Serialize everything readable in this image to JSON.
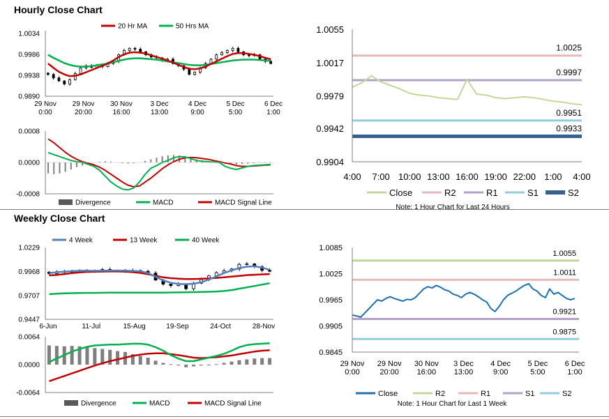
{
  "page": {
    "hourly_title": "Hourly Close Chart",
    "weekly_title": "Weekly Close Chart"
  },
  "chart_data": [
    {
      "id": "hourly_price",
      "type": "candlestick",
      "legend": [
        "20 Hr MA",
        "50 Hrs MA"
      ],
      "yticks": [
        "1.0034",
        "0.9986",
        "0.9938",
        "0.9890"
      ],
      "ylim": [
        0.989,
        1.0034
      ],
      "xticks": [
        [
          "29 Nov",
          "0:00"
        ],
        [
          "29 Nov",
          "20:00"
        ],
        [
          "30 Nov",
          "16:00"
        ],
        [
          "3 Dec",
          "13:00"
        ],
        [
          "4 Dec",
          "9:00"
        ],
        [
          "5 Dec",
          "5:00"
        ],
        [
          "6 Dec",
          "1:00"
        ]
      ],
      "close": [
        0.994,
        0.9932,
        0.9925,
        0.9918,
        0.9928,
        0.9942,
        0.9955,
        0.996,
        0.9956,
        0.9962,
        0.9958,
        0.9965,
        0.997,
        0.9985,
        0.9995,
        1.0,
        0.9998,
        0.9992,
        0.9985,
        0.998,
        0.9978,
        0.9972,
        0.9975,
        0.9965,
        0.996,
        0.9952,
        0.994,
        0.9945,
        0.9955,
        0.9965,
        0.9975,
        0.9985,
        0.999,
        0.9995,
        1.0,
        0.9992,
        0.9985,
        0.9983,
        0.9985,
        0.9975,
        0.997,
        0.9965
      ],
      "ma20": [
        0.9965,
        0.9955,
        0.9946,
        0.994,
        0.9936,
        0.9937,
        0.994,
        0.9945,
        0.995,
        0.9955,
        0.996,
        0.9965,
        0.9972,
        0.998,
        0.9986,
        0.999,
        0.9991,
        0.999,
        0.9988,
        0.9984,
        0.998,
        0.9976,
        0.9972,
        0.9967,
        0.9962,
        0.9957,
        0.9953,
        0.9952,
        0.9954,
        0.9958,
        0.9964,
        0.997,
        0.9976,
        0.9982,
        0.9987,
        0.9989,
        0.9989,
        0.9987,
        0.9985,
        0.9982,
        0.9978,
        0.9975
      ],
      "ma50": [
        0.9985,
        0.9978,
        0.9972,
        0.9966,
        0.9962,
        0.9959,
        0.9958,
        0.9958,
        0.9959,
        0.9961,
        0.9963,
        0.9965,
        0.9968,
        0.9971,
        0.9974,
        0.9976,
        0.9977,
        0.9977,
        0.9976,
        0.9975,
        0.9974,
        0.9972,
        0.997,
        0.9968,
        0.9966,
        0.9964,
        0.9962,
        0.9961,
        0.9961,
        0.9962,
        0.9964,
        0.9966,
        0.9968,
        0.997,
        0.9972,
        0.9973,
        0.9974,
        0.9974,
        0.9974,
        0.9973,
        0.9972,
        0.9971
      ]
    },
    {
      "id": "hourly_macd",
      "type": "bar+line",
      "legend": [
        "Divergence",
        "MACD",
        "MACD Signal Line"
      ],
      "yticks": [
        "0.0008",
        "0.0000",
        "-0.0008"
      ],
      "ylim": [
        -0.0008,
        0.0008
      ],
      "divergence": [
        -0.00028,
        -0.0003,
        -0.00028,
        -0.00024,
        -0.00018,
        -0.00012,
        -8e-05,
        -4e-05,
        0,
        2e-05,
        3e-05,
        2e-05,
        0,
        -2e-05,
        -3e-05,
        -2e-05,
        0,
        4e-05,
        8e-05,
        0.00012,
        0.00016,
        0.00018,
        0.00019,
        0.00018,
        0.00016,
        0.00012,
        8e-05,
        5e-05,
        2e-05,
        0,
        -2e-05,
        -4e-05,
        -6e-05,
        -5e-05,
        -4e-05,
        -3e-05,
        -2e-05,
        1e-05,
        1e-05,
        1e-05
      ],
      "macd": [
        0.00025,
        0.0002,
        0.00015,
        0.0001,
        5e-05,
        2e-05,
        0,
        -5e-05,
        -0.0001,
        -0.0002,
        -0.00035,
        -0.0005,
        -0.0006,
        -0.00068,
        -0.0007,
        -0.00065,
        -0.0005,
        -0.0003,
        -0.00015,
        -8e-05,
        0,
        5e-05,
        0.00012,
        0.00015,
        0.00014,
        0.0001,
        5e-05,
        3e-05,
        2e-05,
        1e-05,
        0,
        -0.0001,
        -0.00015,
        -0.00018,
        -0.00014,
        -0.0001,
        -8e-05,
        -7e-05,
        -6e-05,
        -5e-05
      ],
      "signal": [
        0.0006,
        0.0005,
        0.00038,
        0.00026,
        0.00016,
        8e-05,
        2e-05,
        -2e-05,
        -6e-05,
        -0.00012,
        -0.0002,
        -0.0003,
        -0.0004,
        -0.0005,
        -0.00058,
        -0.00062,
        -0.0006,
        -0.0005,
        -0.0004,
        -0.00028,
        -0.00016,
        -6e-05,
        2e-05,
        8e-05,
        0.00012,
        0.00013,
        0.00012,
        0.0001,
        8e-05,
        5e-05,
        2e-05,
        -1e-05,
        -4e-05,
        -8e-05,
        -0.0001,
        -0.0001,
        -9e-05,
        -8e-05,
        -7e-05,
        -6e-05
      ]
    },
    {
      "id": "hourly_levels",
      "type": "line",
      "ylim": [
        0.9904,
        1.0055
      ],
      "yticks": [
        "1.0055",
        "1.0017",
        "0.9979",
        "0.9942",
        "0.9904"
      ],
      "xticks": [
        "4:00",
        "7:00",
        "10:00",
        "13:00",
        "16:00",
        "19:00",
        "22:00",
        "1:00",
        "4:00"
      ],
      "close": [
        0.9989,
        0.9994,
        1.0002,
        0.9995,
        0.9991,
        0.9987,
        0.9982,
        0.998,
        0.9979,
        0.9977,
        0.9976,
        0.9975,
        0.9998,
        0.9981,
        0.998,
        0.9977,
        0.9976,
        0.9977,
        0.9978,
        0.9977,
        0.9975,
        0.9973,
        0.9972,
        0.997,
        0.9969
      ],
      "levels": {
        "R2": 1.0025,
        "R1": 0.9997,
        "S1": 0.9951,
        "S2": 0.9933
      },
      "level_labels": [
        "1.0025",
        "0.9997",
        "0.9951",
        "0.9933"
      ],
      "legend": [
        "Close",
        "R2",
        "R1",
        "S1",
        "S2"
      ],
      "note": "Note: 1 Hour Chart for Last 24 Hours"
    },
    {
      "id": "weekly_price",
      "type": "candlestick",
      "legend": [
        "4 Week",
        "13 Week",
        "40 Week"
      ],
      "yticks": [
        "1.0229",
        "0.9968",
        "0.9707",
        "0.9447"
      ],
      "ylim": [
        0.9447,
        1.0229
      ],
      "xticks": [
        "6-Jun",
        "11-Jul",
        "15-Aug",
        "19-Sep",
        "24-Oct",
        "28-Nov"
      ],
      "close": [
        0.9945,
        0.9965,
        0.996,
        0.9975,
        0.9972,
        0.997,
        0.9978,
        0.999,
        0.9975,
        0.9978,
        0.9975,
        0.9978,
        0.997,
        0.995,
        0.9875,
        0.983,
        0.9815,
        0.983,
        0.978,
        0.984,
        0.988,
        0.992,
        0.9955,
        0.9975,
        0.9995,
        1.0045,
        1.005,
        1.002,
        0.998,
        0.997
      ],
      "w4": [
        0.995,
        0.996,
        0.9965,
        0.9972,
        0.9975,
        0.9976,
        0.9975,
        0.9976,
        0.9978,
        0.9978,
        0.9976,
        0.9974,
        0.997,
        0.995,
        0.991,
        0.987,
        0.9845,
        0.9833,
        0.983,
        0.9835,
        0.985,
        0.988,
        0.9915,
        0.995,
        0.998,
        1.0005,
        1.002,
        1.0025,
        1.001,
        0.9985
      ],
      "w13": [
        0.9925,
        0.993,
        0.994,
        0.995,
        0.9958,
        0.9963,
        0.9965,
        0.9967,
        0.9968,
        0.9968,
        0.9966,
        0.996,
        0.9952,
        0.9938,
        0.992,
        0.9905,
        0.9895,
        0.989,
        0.9885,
        0.9885,
        0.9888,
        0.9892,
        0.9898,
        0.9905,
        0.9912,
        0.992,
        0.9928,
        0.9932,
        0.9936,
        0.994
      ],
      "w40": [
        0.972,
        0.9726,
        0.973,
        0.9732,
        0.9734,
        0.9735,
        0.9735,
        0.9736,
        0.9737,
        0.9738,
        0.9738,
        0.9738,
        0.9738,
        0.9738,
        0.9738,
        0.9738,
        0.9739,
        0.974,
        0.9741,
        0.9743,
        0.9745,
        0.9747,
        0.975,
        0.9755,
        0.9765,
        0.978,
        0.9795,
        0.981,
        0.9825,
        0.984
      ]
    },
    {
      "id": "weekly_macd",
      "type": "bar+line",
      "legend": [
        "Divergence",
        "MACD",
        "MACD Signal Line"
      ],
      "yticks": [
        "0.0064",
        "0.0000",
        "-0.0064"
      ],
      "ylim": [
        -0.0064,
        0.0064
      ],
      "divergence": [
        0.0044,
        0.0043,
        0.0042,
        0.0043,
        0.0042,
        0.004,
        0.0038,
        0.0036,
        0.0034,
        0.0031,
        0.0029,
        0.0024,
        0.002,
        0.0016,
        0.0009,
        0.0004,
        0.0001,
        -0.0002,
        -0.0006,
        -0.0004,
        -0.0002,
        -0.0001,
        0.0001,
        0.0004,
        0.0007,
        0.001,
        0.0012,
        0.0014,
        0.0015,
        0.0015
      ],
      "macd": [
        0.0006,
        0.0014,
        0.0022,
        0.003,
        0.0036,
        0.0041,
        0.0044,
        0.0045,
        0.0046,
        0.0046,
        0.0047,
        0.0048,
        0.0048,
        0.0046,
        0.004,
        0.0032,
        0.0022,
        0.0014,
        0.0008,
        0.0008,
        0.0012,
        0.0016,
        0.002,
        0.0025,
        0.0032,
        0.004,
        0.0045,
        0.0047,
        0.0048,
        0.0049
      ],
      "signal": [
        -0.0038,
        -0.0032,
        -0.0026,
        -0.002,
        -0.0014,
        -0.0008,
        -0.0002,
        0.0003,
        0.0008,
        0.0012,
        0.0016,
        0.002,
        0.0023,
        0.0025,
        0.0026,
        0.0026,
        0.0024,
        0.0022,
        0.0019,
        0.0016,
        0.0015,
        0.0016,
        0.0017,
        0.0019,
        0.0021,
        0.0024,
        0.0027,
        0.003,
        0.0032,
        0.0033
      ]
    },
    {
      "id": "weekly_levels",
      "type": "line",
      "ylim": [
        0.9845,
        1.0085
      ],
      "yticks": [
        "1.0085",
        "1.0025",
        "0.9965",
        "0.9905",
        "0.9845"
      ],
      "xticks": [
        [
          "29 Nov",
          "0:00"
        ],
        [
          "29 Nov",
          "20:00"
        ],
        [
          "30 Nov",
          "16:00"
        ],
        [
          "3 Dec",
          "13:00"
        ],
        [
          "4 Dec",
          "9:00"
        ],
        [
          "5 Dec",
          "5:00"
        ],
        [
          "6 Dec",
          "1:00"
        ]
      ],
      "close": [
        0.993,
        0.9928,
        0.9925,
        0.9935,
        0.9945,
        0.9955,
        0.9965,
        0.9962,
        0.9968,
        0.9972,
        0.9968,
        0.9965,
        0.9962,
        0.9966,
        0.9965,
        0.997,
        0.998,
        0.999,
        0.9995,
        0.9992,
        0.9998,
        0.9994,
        0.9988,
        0.9985,
        0.9978,
        0.9975,
        0.997,
        0.9978,
        0.9982,
        0.9978,
        0.9972,
        0.9965,
        0.996,
        0.9945,
        0.9938,
        0.995,
        0.9965,
        0.9975,
        0.998,
        0.9985,
        0.9992,
        0.9998,
        1.0002,
        0.999,
        0.9985,
        0.9975,
        0.997,
        0.999,
        0.9978,
        0.9982,
        0.9975,
        0.9968,
        0.9965,
        0.9968
      ],
      "levels": {
        "R2": 1.0055,
        "R1": 1.0011,
        "S1": 0.9921,
        "S2": 0.9875
      },
      "level_labels": [
        "1.0055",
        "1.0011",
        "0.9921",
        "0.9875"
      ],
      "legend": [
        "Close",
        "R2",
        "R1",
        "S1",
        "S2"
      ],
      "note": "Note: 1 Hour Chart for Last 1 Week"
    }
  ],
  "colors": {
    "red": "#c00000",
    "green": "#00b050",
    "blue": "#4f81bd",
    "gray": "#7f7f7f",
    "close_light": "#c4d79b",
    "r2": "#e6b9b8",
    "r1": "#b3a2c7",
    "s1": "#93cddd",
    "s2": "#376092",
    "wk_close": "#1f6fb2",
    "wk_r2": "#c4d79b",
    "wk_r1": "#e6b9b8",
    "wk_s1": "#b3a2c7",
    "wk_s2": "#93cddd"
  }
}
